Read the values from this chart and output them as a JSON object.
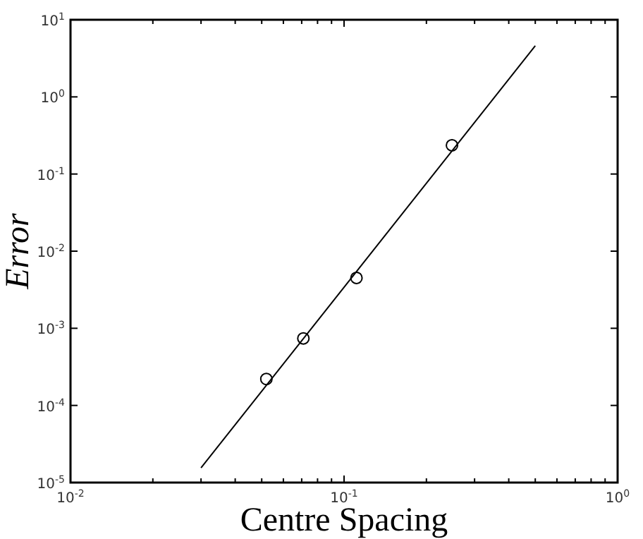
{
  "chart_data": {
    "type": "scatter",
    "xlabel": "Centre Spacing",
    "ylabel": "Error",
    "log": "xy",
    "xlim": [
      0.01,
      1
    ],
    "ylim": [
      1e-05,
      10
    ],
    "xticks": [
      {
        "value": 0.01,
        "label": "10$^{-2}$"
      },
      {
        "value": 0.02,
        "label": null
      },
      {
        "value": 0.03,
        "label": null
      },
      {
        "value": 0.04,
        "label": null
      },
      {
        "value": 0.05,
        "label": null
      },
      {
        "value": 0.06,
        "label": null
      },
      {
        "value": 0.07,
        "label": null
      },
      {
        "value": 0.08,
        "label": null
      },
      {
        "value": 0.09,
        "label": null
      },
      {
        "value": 0.1,
        "label": "10$^{-1}$"
      },
      {
        "value": 0.2,
        "label": null
      },
      {
        "value": 0.3,
        "label": null
      },
      {
        "value": 0.4,
        "label": null
      },
      {
        "value": 0.5,
        "label": null
      },
      {
        "value": 0.6,
        "label": null
      },
      {
        "value": 0.7,
        "label": null
      },
      {
        "value": 0.8,
        "label": null
      },
      {
        "value": 0.9,
        "label": null
      },
      {
        "value": 1,
        "label": "10$^{0}$"
      }
    ],
    "yticks": [
      {
        "value": 1e-05,
        "label": "10$^{-5}$"
      },
      {
        "value": 0.0001,
        "label": "10$^{-4}$"
      },
      {
        "value": 0.001,
        "label": "10$^{-3}$"
      },
      {
        "value": 0.01,
        "label": "10$^{-2}$"
      },
      {
        "value": 0.1,
        "label": "10$^{-1}$"
      },
      {
        "value": 1,
        "label": "10$^{0}$"
      },
      {
        "value": 10,
        "label": "10$^{1}$"
      }
    ],
    "series": [
      {
        "type": "scatter",
        "marker": "circle",
        "color": "#000000",
        "x": [
          0.052,
          0.071,
          0.111,
          0.248
        ],
        "values": [
          0.00022,
          0.00074,
          0.0045,
          0.236
        ]
      },
      {
        "type": "line",
        "color": "#000000",
        "x": [
          0.03,
          0.5
        ],
        "values": [
          1.55e-05,
          4.6
        ]
      }
    ]
  }
}
